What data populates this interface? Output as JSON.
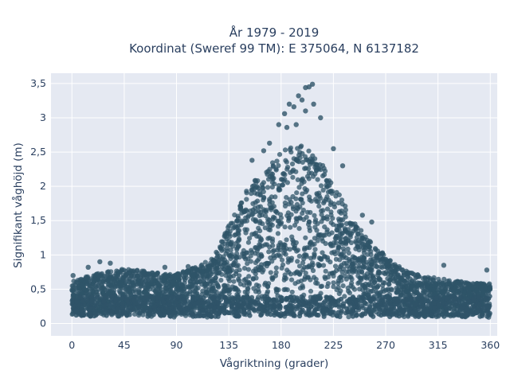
{
  "chart_data": {
    "type": "scatter",
    "title_lines": [
      "År 1979 - 2019",
      "Koordinat (Sweref 99 TM): E 375064, N 6137182"
    ],
    "xlabel": "Vågriktning (grader)",
    "ylabel": "Signifikant våghöjd (m)",
    "xlim": [
      -18,
      366
    ],
    "ylim": [
      -0.18,
      3.65
    ],
    "xticks": [
      0,
      45,
      90,
      135,
      180,
      225,
      270,
      315,
      360
    ],
    "xtick_labels": [
      "0",
      "45",
      "90",
      "135",
      "180",
      "225",
      "270",
      "315",
      "360"
    ],
    "yticks": [
      0,
      0.5,
      1,
      1.5,
      2,
      2.5,
      3,
      3.5
    ],
    "ytick_labels": [
      "0",
      "0,5",
      "1",
      "1,5",
      "2",
      "2,5",
      "3",
      "3,5"
    ],
    "grid": true,
    "marker_color": "#2f5468",
    "background_color": "#e5e9f2",
    "envelope": {
      "direction": [
        0,
        20,
        45,
        70,
        90,
        110,
        120,
        130,
        140,
        150,
        160,
        170,
        180,
        190,
        200,
        210,
        220,
        230,
        240,
        250,
        260,
        270,
        280,
        290,
        300,
        315,
        330,
        345,
        360
      ],
      "max_height": [
        0.62,
        0.72,
        0.8,
        0.75,
        0.72,
        0.85,
        0.95,
        1.25,
        1.6,
        1.95,
        2.15,
        2.3,
        2.5,
        2.6,
        2.6,
        2.45,
        2.2,
        1.9,
        1.55,
        1.35,
        1.12,
        1.0,
        0.85,
        0.75,
        0.7,
        0.66,
        0.62,
        0.6,
        0.58
      ]
    },
    "highlighted_points": [
      {
        "x": 201,
        "y": 3.44
      },
      {
        "x": 204,
        "y": 3.45
      },
      {
        "x": 207,
        "y": 3.49
      },
      {
        "x": 195,
        "y": 3.32
      },
      {
        "x": 198,
        "y": 3.26
      },
      {
        "x": 208,
        "y": 3.2
      },
      {
        "x": 187,
        "y": 3.2
      },
      {
        "x": 191,
        "y": 3.16
      },
      {
        "x": 201,
        "y": 3.1
      },
      {
        "x": 183,
        "y": 3.06
      },
      {
        "x": 214,
        "y": 3.0
      },
      {
        "x": 178,
        "y": 2.9
      },
      {
        "x": 185,
        "y": 2.86
      },
      {
        "x": 193,
        "y": 2.9
      },
      {
        "x": 170,
        "y": 2.63
      },
      {
        "x": 165,
        "y": 2.52
      },
      {
        "x": 225,
        "y": 2.55
      },
      {
        "x": 233,
        "y": 2.3
      },
      {
        "x": 155,
        "y": 2.38
      },
      {
        "x": 250,
        "y": 1.58
      },
      {
        "x": 258,
        "y": 1.48
      },
      {
        "x": 267,
        "y": 1.02
      },
      {
        "x": 24,
        "y": 0.9
      },
      {
        "x": 33,
        "y": 0.88
      },
      {
        "x": 47,
        "y": 0.72
      },
      {
        "x": 80,
        "y": 0.82
      },
      {
        "x": 100,
        "y": 0.83
      },
      {
        "x": 320,
        "y": 0.85
      },
      {
        "x": 357,
        "y": 0.78
      },
      {
        "x": 1,
        "y": 0.7
      },
      {
        "x": 14,
        "y": 0.82
      },
      {
        "x": 62,
        "y": 0.7
      }
    ]
  }
}
